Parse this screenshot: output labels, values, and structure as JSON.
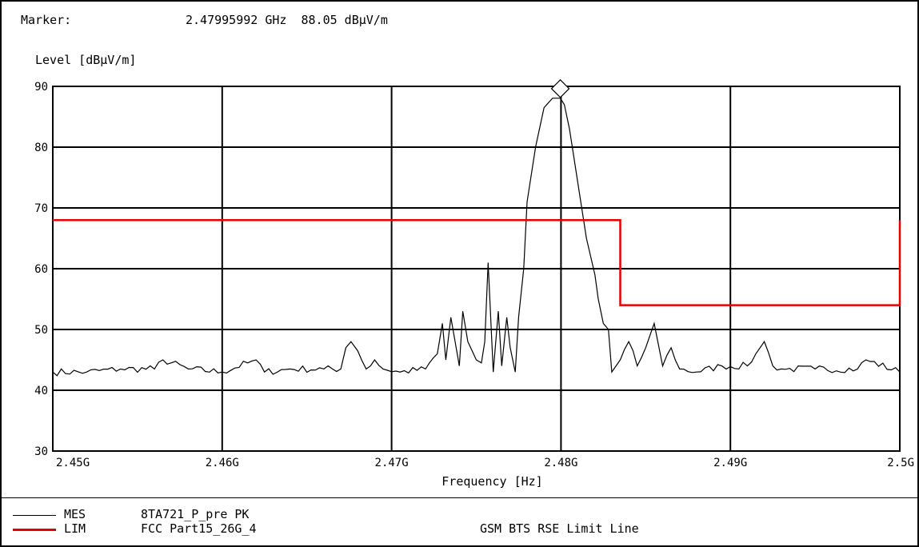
{
  "header": {
    "marker_label": "Marker:",
    "marker_value": "2.47995992 GHz  88.05 dBµV/m"
  },
  "colors": {
    "measurement": "#000000",
    "limit": "#e60000",
    "grid": "#000000"
  },
  "legend": [
    {
      "tag": "MES",
      "name": "8TA721_P_pre PK",
      "description": "",
      "color": "#000000"
    },
    {
      "tag": "LIM",
      "name": "FCC Part15_26G_4",
      "description": "GSM BTS RSE Limit Line",
      "color": "#e60000"
    }
  ],
  "chart_data": {
    "type": "line",
    "ylabel": "Level [dBµV/m]",
    "xlabel": "Frequency [Hz]",
    "xlim": [
      2.45,
      2.5
    ],
    "ylim": [
      30,
      90
    ],
    "x_ticks": [
      2.45,
      2.46,
      2.47,
      2.48,
      2.49,
      2.5
    ],
    "x_tick_labels": [
      "2.45G",
      "2.46G",
      "2.47G",
      "2.48G",
      "2.49G",
      "2.5G"
    ],
    "y_ticks": [
      30,
      40,
      50,
      60,
      70,
      80,
      90
    ],
    "y_tick_labels": [
      "30",
      "40",
      "50",
      "60",
      "70",
      "80",
      "90"
    ],
    "grid": true,
    "marker": {
      "x": 2.47995992,
      "y": 88.05,
      "shape": "diamond"
    },
    "series": [
      {
        "name": "MES",
        "color": "#000000",
        "x": [
          2.45,
          2.452,
          2.454,
          2.456,
          2.4565,
          2.458,
          2.46,
          2.4615,
          2.462,
          2.4625,
          2.464,
          2.466,
          2.467,
          2.4673,
          2.4676,
          2.468,
          2.4685,
          2.469,
          2.4695,
          2.4705,
          2.472,
          2.4727,
          2.473,
          2.4732,
          2.4735,
          2.474,
          2.4742,
          2.4745,
          2.475,
          2.4753,
          2.4755,
          2.4757,
          2.476,
          2.4763,
          2.4765,
          2.4768,
          2.477,
          2.4773,
          2.4775,
          2.4778,
          2.478,
          2.4785,
          2.479,
          2.4795,
          2.47996,
          2.4802,
          2.4805,
          2.481,
          2.4815,
          2.482,
          2.4822,
          2.4825,
          2.4828,
          2.483,
          2.4835,
          2.484,
          2.4845,
          2.485,
          2.4855,
          2.486,
          2.4865,
          2.487,
          2.488,
          2.4895,
          2.491,
          2.4915,
          2.492,
          2.4925,
          2.493,
          2.495,
          2.4975,
          2.498,
          2.5
        ],
        "y": [
          43,
          43,
          43.5,
          43.5,
          45,
          43.5,
          43,
          44.5,
          45,
          43,
          43.5,
          43.5,
          43.5,
          47,
          48,
          46.5,
          43.5,
          45,
          43.5,
          43,
          43.5,
          46,
          51,
          45,
          52,
          44,
          53,
          48,
          45,
          44.5,
          48,
          61,
          43,
          53,
          44,
          52,
          47,
          43,
          52,
          60,
          71,
          80,
          86.5,
          88.05,
          88.05,
          87,
          83,
          74,
          65,
          59,
          55,
          51,
          50,
          43,
          45,
          48,
          44,
          47,
          51,
          44,
          47,
          43.5,
          43,
          44,
          44,
          46,
          48,
          44,
          43.5,
          43.5,
          43.5,
          45,
          43
        ]
      },
      {
        "name": "LIM",
        "color": "#e60000",
        "x": [
          2.45,
          2.4835,
          2.4835,
          2.5,
          2.5
        ],
        "y": [
          68,
          68,
          54,
          54,
          68
        ]
      }
    ]
  }
}
